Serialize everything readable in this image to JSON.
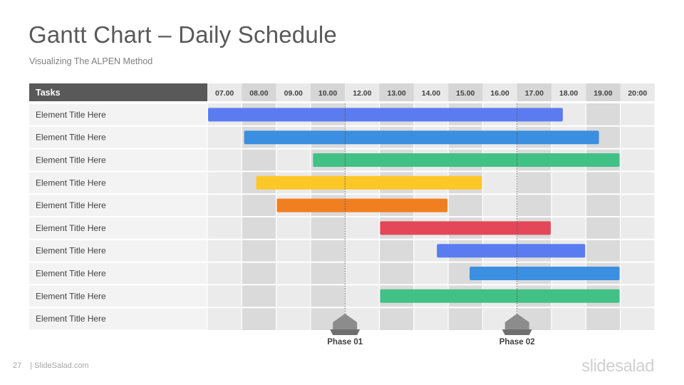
{
  "slide": {
    "title": "Gantt Chart – Daily Schedule",
    "subtitle": "Visualizing  The ALPEN  Method",
    "page_number": "27",
    "footer_source": "| SlideSalad.com",
    "brand": "slidesalad"
  },
  "chart_data": {
    "type": "gantt",
    "tasks_header": "Tasks",
    "time_columns": [
      "07.00",
      "08.00",
      "09.00",
      "10.00",
      "12.00",
      "13.00",
      "14.00",
      "15.00",
      "16.00",
      "17.00",
      "18.00",
      "19.00",
      "20:00"
    ],
    "tasks": [
      {
        "label": "Element Title Here",
        "start": 0,
        "end": 10.35,
        "color": "#5b7cf0"
      },
      {
        "label": "Element Title Here",
        "start": 1.05,
        "end": 11.4,
        "color": "#3b8fe0"
      },
      {
        "label": "Element Title Here",
        "start": 3.05,
        "end": 12.0,
        "color": "#41c185"
      },
      {
        "label": "Element Title Here",
        "start": 1.4,
        "end": 8.0,
        "color": "#fcc827"
      },
      {
        "label": "Element Title Here",
        "start": 2.0,
        "end": 7.0,
        "color": "#f27f1f"
      },
      {
        "label": "Element Title Here",
        "start": 5.0,
        "end": 10.0,
        "color": "#e44858"
      },
      {
        "label": "Element Title Here",
        "start": 6.65,
        "end": 11.0,
        "color": "#5b7cf0"
      },
      {
        "label": "Element Title Here",
        "start": 7.6,
        "end": 12.0,
        "color": "#3b8fe0"
      },
      {
        "label": "Element Title Here",
        "start": 5.0,
        "end": 12.0,
        "color": "#41c185"
      },
      {
        "label": "Element Title Here",
        "start": null,
        "end": null,
        "color": null
      }
    ],
    "milestones": [
      {
        "label": "Phase 01",
        "at": 4.0
      },
      {
        "label": "Phase 02",
        "at": 9.0
      }
    ],
    "colors": {
      "header_dark": "#595959",
      "header_light": "#dedede",
      "col_light": "#ebebeb",
      "col_dark": "#dadada",
      "row_label_bg": "#f3f3f3",
      "milestone": "#8c8c8c"
    }
  }
}
